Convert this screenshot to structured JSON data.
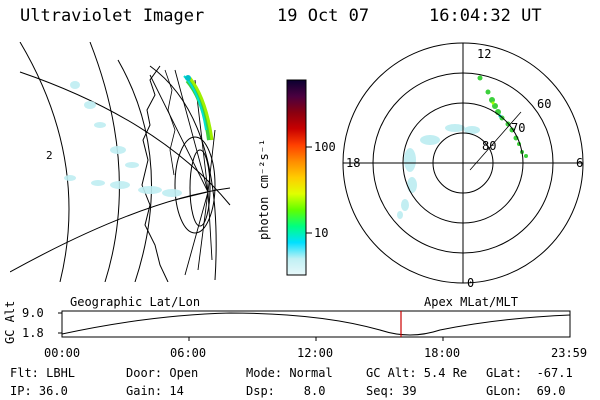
{
  "header": {
    "title": "Ultraviolet Imager",
    "date": "19 Oct 07",
    "time": "16:04:32 UT"
  },
  "geo_panel": {
    "label": "Geographic Lat/Lon",
    "lon_mark": "2"
  },
  "colorbar": {
    "unit_label": "photon cm⁻²s⁻¹",
    "ticks": [
      "100",
      "10"
    ],
    "colors": [
      "#0a0030",
      "#4a0040",
      "#8a0010",
      "#c80000",
      "#ff4000",
      "#ff8c00",
      "#ffcc00",
      "#e0ff00",
      "#60ff00",
      "#00ff80",
      "#00e0ff",
      "#c0f0f4",
      "#e8f8fa"
    ]
  },
  "polar_panel": {
    "label": "Apex MLat/MLT",
    "mlt_labels": {
      "top": "12",
      "left": "18",
      "right": "6",
      "bottom": "0"
    },
    "lat_labels": [
      "60",
      "70",
      "80"
    ]
  },
  "altitude_plot": {
    "ylabel": "GC Alt",
    "yticks": [
      "9.0",
      "1.8"
    ],
    "xticks": [
      "00:00",
      "06:00",
      "12:00",
      "18:00",
      "23:59"
    ],
    "current_time_color": "#cc0000"
  },
  "info": {
    "filter": "Flt: LBHL",
    "ip": "IP: 36.0",
    "door": "Door: Open",
    "gain": "Gain: 14",
    "mode": "Mode: Normal",
    "dsp": "Dsp:    8.0",
    "gc_alt": "GC Alt: 5.4 Re",
    "seq": "Seq: 39",
    "glat": "GLat:  -67.1",
    "glon": "GLon:  69.0"
  }
}
